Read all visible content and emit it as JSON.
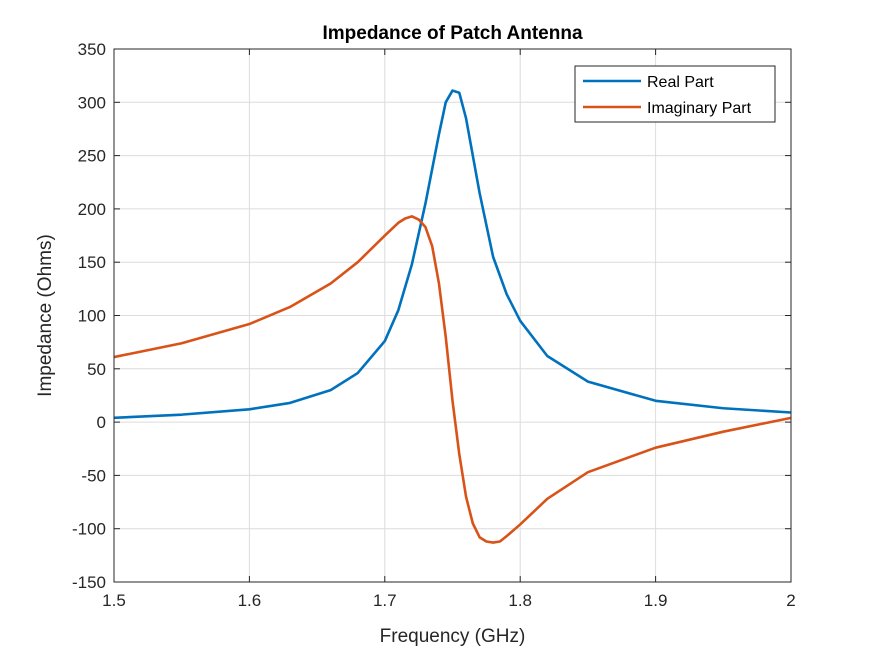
{
  "chart_data": {
    "type": "line",
    "title": "Impedance of Patch Antenna",
    "xlabel": "Frequency (GHz)",
    "ylabel": "Impedance (Ohms)",
    "xlim": [
      1.5,
      2.0
    ],
    "ylim": [
      -150,
      350
    ],
    "xticks": [
      1.5,
      1.6,
      1.7,
      1.8,
      1.9,
      2.0
    ],
    "xtick_labels": [
      "1.5",
      "1.6",
      "1.7",
      "1.8",
      "1.9",
      "2"
    ],
    "yticks": [
      -150,
      -100,
      -50,
      0,
      50,
      100,
      150,
      200,
      250,
      300,
      350
    ],
    "ytick_labels": [
      "-150",
      "-100",
      "-50",
      "0",
      "50",
      "100",
      "150",
      "200",
      "250",
      "300",
      "350"
    ],
    "grid": true,
    "legend_position": "top-right",
    "series": [
      {
        "name": "Real Part",
        "color": "#0072BD",
        "x": [
          1.5,
          1.55,
          1.6,
          1.63,
          1.66,
          1.68,
          1.7,
          1.71,
          1.72,
          1.73,
          1.74,
          1.745,
          1.75,
          1.755,
          1.76,
          1.77,
          1.78,
          1.79,
          1.8,
          1.82,
          1.85,
          1.9,
          1.95,
          2.0
        ],
        "y": [
          4,
          7,
          12,
          18,
          30,
          46,
          76,
          105,
          148,
          205,
          270,
          300,
          311,
          309,
          285,
          215,
          155,
          120,
          95,
          62,
          38,
          20,
          13,
          9
        ]
      },
      {
        "name": "Imaginary Part",
        "color": "#D95319",
        "x": [
          1.5,
          1.55,
          1.6,
          1.63,
          1.66,
          1.68,
          1.7,
          1.71,
          1.715,
          1.72,
          1.725,
          1.73,
          1.735,
          1.74,
          1.745,
          1.75,
          1.755,
          1.76,
          1.765,
          1.77,
          1.775,
          1.78,
          1.785,
          1.79,
          1.8,
          1.82,
          1.85,
          1.9,
          1.95,
          2.0
        ],
        "y": [
          61,
          74,
          92,
          108,
          130,
          150,
          175,
          187,
          191,
          193,
          190,
          183,
          165,
          130,
          80,
          20,
          -30,
          -70,
          -95,
          -108,
          -112,
          -113,
          -112,
          -107,
          -96,
          -72,
          -47,
          -24,
          -9,
          4
        ]
      }
    ]
  }
}
